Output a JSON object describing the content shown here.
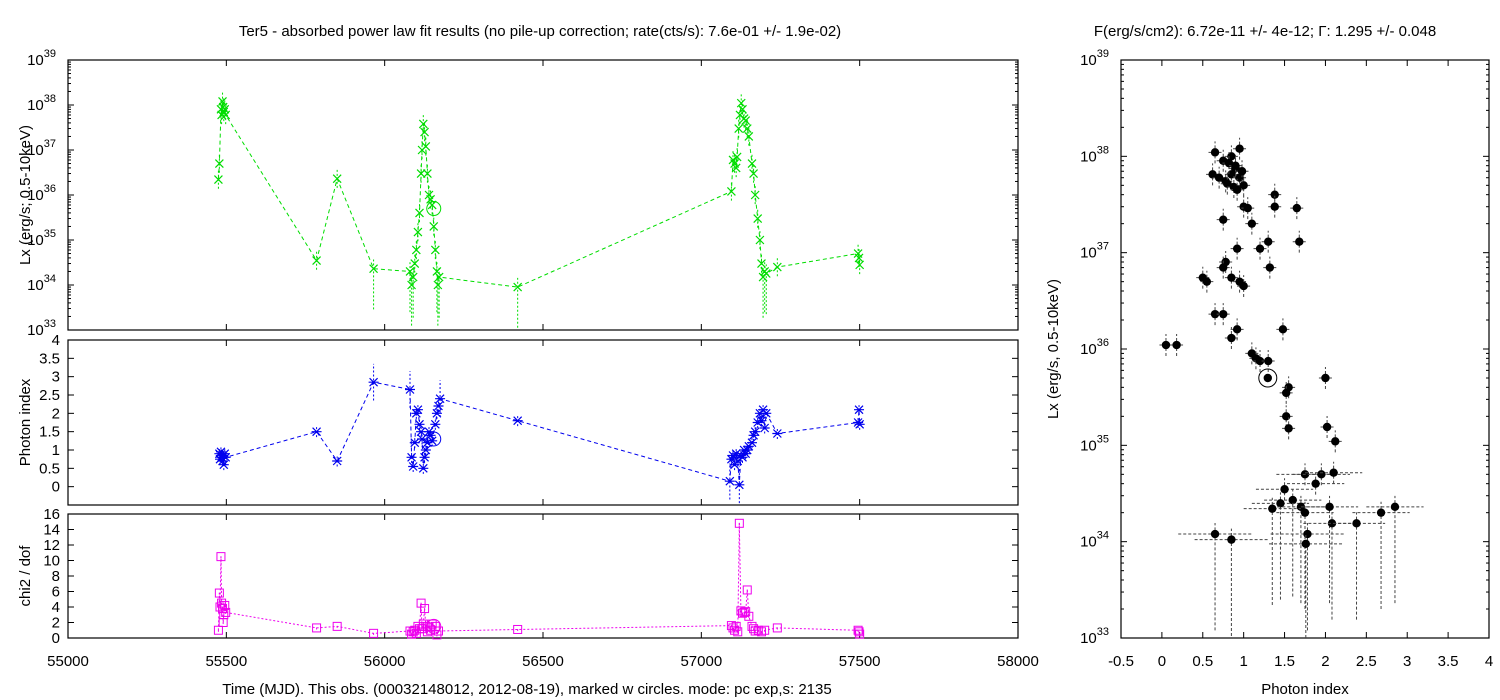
{
  "left_title": "Ter5  - absorbed power law fit results (no pile-up correction; rate(cts/s): 7.6e-01 +/- 1.9e-02)",
  "right_title": "F(erg/s/cm2): 6.72e-11 +/- 4e-12; Γ: 1.295 +/- 0.048",
  "left_xlabel": "Time (MJD). This obs. (00032148012, 2012-08-19), marked w circles. mode: pc exp,s: 2135",
  "colors": {
    "lx": "#00dd00",
    "photon": "#0000ee",
    "chi": "#ee00ee",
    "scatter": "#000000"
  },
  "chart_data": [
    {
      "type": "line",
      "panel": "lx_vs_time",
      "ylabel": "Lx (erg/s; 0.5-10keV)",
      "xlim": [
        55000,
        58000
      ],
      "ylim": [
        1e+33,
        1e+39
      ],
      "yscale": "log",
      "y_ticks": [
        {
          "v": 1e+33,
          "m": "10",
          "e": "33"
        },
        {
          "v": 1e+34,
          "m": "10",
          "e": "34"
        },
        {
          "v": 1e+35,
          "m": "10",
          "e": "35"
        },
        {
          "v": 1e+36,
          "m": "10",
          "e": "36"
        },
        {
          "v": 1e+37,
          "m": "10",
          "e": "37"
        },
        {
          "v": 1e+38,
          "m": "10",
          "e": "38"
        },
        {
          "v": 1e+39,
          "m": "10",
          "e": "39"
        }
      ],
      "marker": "x",
      "points": [
        [
          55475,
          2.2e+36
        ],
        [
          55478,
          5e+36
        ],
        [
          55483,
          8e+37
        ],
        [
          55485,
          6e+37
        ],
        [
          55488,
          1.2e+38
        ],
        [
          55490,
          9e+37
        ],
        [
          55492,
          7e+37
        ],
        [
          55495,
          8e+37
        ],
        [
          55498,
          6e+37
        ],
        [
          55785,
          3.5e+34
        ],
        [
          55850,
          2.3e+36
        ],
        [
          55965,
          2.3e+34
        ],
        [
          56080,
          2e+34
        ],
        [
          56085,
          1e+34
        ],
        [
          56090,
          1.5e+34
        ],
        [
          56095,
          3e+34
        ],
        [
          56100,
          6e+34
        ],
        [
          56105,
          1.5e+35
        ],
        [
          56110,
          4e+35
        ],
        [
          56115,
          3e+36
        ],
        [
          56118,
          1e+37
        ],
        [
          56122,
          3.8e+37
        ],
        [
          56126,
          2.5e+37
        ],
        [
          56130,
          1.2e+37
        ],
        [
          56135,
          3e+36
        ],
        [
          56140,
          1e+36
        ],
        [
          56145,
          8e+35
        ],
        [
          56150,
          6e+35
        ],
        [
          56155,
          2e+35
        ],
        [
          56160,
          6e+34
        ],
        [
          56165,
          2e+34
        ],
        [
          56168,
          1e+34
        ],
        [
          56172,
          1.5e+34
        ],
        [
          56420,
          9e+33
        ],
        [
          57095,
          1.2e+36
        ],
        [
          57100,
          6e+36
        ],
        [
          57105,
          5e+36
        ],
        [
          57110,
          4e+36
        ],
        [
          57113,
          7e+36
        ],
        [
          57118,
          3e+37
        ],
        [
          57122,
          6e+37
        ],
        [
          57126,
          1.1e+38
        ],
        [
          57130,
          8e+37
        ],
        [
          57135,
          5e+37
        ],
        [
          57140,
          4.5e+37
        ],
        [
          57145,
          3e+37
        ],
        [
          57150,
          2e+37
        ],
        [
          57160,
          5e+36
        ],
        [
          57165,
          3e+36
        ],
        [
          57170,
          1e+36
        ],
        [
          57178,
          3e+35
        ],
        [
          57185,
          1e+35
        ],
        [
          57190,
          3e+34
        ],
        [
          57195,
          1.5e+34
        ],
        [
          57200,
          2e+34
        ],
        [
          57205,
          1.8e+34
        ],
        [
          57240,
          2.5e+34
        ],
        [
          57495,
          5e+34
        ],
        [
          57498,
          4e+34
        ],
        [
          57500,
          2.8e+34
        ]
      ],
      "current_obs": [
        56155,
        5e+35
      ]
    },
    {
      "type": "line",
      "panel": "photon_index_vs_time",
      "ylabel": "Photon index",
      "xlim": [
        55000,
        58000
      ],
      "ylim": [
        -0.5,
        4
      ],
      "yticks": [
        "0",
        "0.5",
        "1",
        "1.5",
        "2",
        "2.5",
        "3",
        "3.5",
        "4"
      ],
      "marker": "star",
      "points": [
        [
          55478,
          0.9
        ],
        [
          55480,
          0.75
        ],
        [
          55483,
          0.95
        ],
        [
          55485,
          0.8
        ],
        [
          55488,
          0.7
        ],
        [
          55490,
          0.85
        ],
        [
          55492,
          0.6
        ],
        [
          55495,
          0.9
        ],
        [
          55498,
          0.8
        ],
        [
          55785,
          1.5
        ],
        [
          55850,
          0.7
        ],
        [
          55965,
          2.85
        ],
        [
          56080,
          2.65
        ],
        [
          56085,
          0.8
        ],
        [
          56090,
          0.55
        ],
        [
          56095,
          1.2
        ],
        [
          56100,
          2.0
        ],
        [
          56105,
          2.1
        ],
        [
          56110,
          1.7
        ],
        [
          56115,
          1.5
        ],
        [
          56118,
          1.3
        ],
        [
          56122,
          0.5
        ],
        [
          56126,
          0.8
        ],
        [
          56130,
          1.0
        ],
        [
          56135,
          1.2
        ],
        [
          56140,
          1.5
        ],
        [
          56145,
          1.4
        ],
        [
          56150,
          1.25
        ],
        [
          56160,
          1.7
        ],
        [
          56165,
          2.0
        ],
        [
          56170,
          2.2
        ],
        [
          56175,
          2.4
        ],
        [
          56420,
          1.8
        ],
        [
          57090,
          0.15
        ],
        [
          57095,
          0.75
        ],
        [
          57100,
          0.85
        ],
        [
          57105,
          0.6
        ],
        [
          57110,
          0.9
        ],
        [
          57115,
          0.7
        ],
        [
          57120,
          0.05
        ],
        [
          57125,
          0.85
        ],
        [
          57130,
          0.8
        ],
        [
          57135,
          1.0
        ],
        [
          57140,
          0.9
        ],
        [
          57145,
          1.0
        ],
        [
          57150,
          1.1
        ],
        [
          57160,
          1.2
        ],
        [
          57165,
          1.4
        ],
        [
          57170,
          1.5
        ],
        [
          57178,
          1.75
        ],
        [
          57185,
          2.0
        ],
        [
          57190,
          1.8
        ],
        [
          57195,
          2.1
        ],
        [
          57200,
          1.6
        ],
        [
          57205,
          2.0
        ],
        [
          57240,
          1.45
        ],
        [
          57495,
          1.75
        ],
        [
          57498,
          2.1
        ],
        [
          57500,
          1.7
        ]
      ],
      "current_obs": [
        56155,
        1.3
      ]
    },
    {
      "type": "line",
      "panel": "chi2_vs_time",
      "ylabel": "chi2 / dof",
      "xlabel": "Time (MJD). This obs. (00032148012, 2012-08-19), marked w circles. mode: pc exp,s: 2135",
      "xlim": [
        55000,
        58000
      ],
      "xticks": [
        "55000",
        "55500",
        "56000",
        "56500",
        "57000",
        "57500",
        "58000"
      ],
      "ylim": [
        0,
        16
      ],
      "yticks": [
        "0",
        "2",
        "4",
        "6",
        "8",
        "10",
        "12",
        "14",
        "16"
      ],
      "marker": "square",
      "points": [
        [
          55475,
          1.0
        ],
        [
          55478,
          5.8
        ],
        [
          55480,
          4.0
        ],
        [
          55483,
          10.5
        ],
        [
          55485,
          4.5
        ],
        [
          55488,
          3.8
        ],
        [
          55490,
          2.0
        ],
        [
          55492,
          3.0
        ],
        [
          55495,
          4.2
        ],
        [
          55498,
          3.3
        ],
        [
          55785,
          1.3
        ],
        [
          55850,
          1.5
        ],
        [
          55965,
          0.6
        ],
        [
          56080,
          0.9
        ],
        [
          56085,
          0.5
        ],
        [
          56090,
          0.8
        ],
        [
          56095,
          1.0
        ],
        [
          56100,
          0.6
        ],
        [
          56105,
          1.5
        ],
        [
          56110,
          1.2
        ],
        [
          56115,
          4.5
        ],
        [
          56118,
          1.2
        ],
        [
          56122,
          1.8
        ],
        [
          56126,
          3.8
        ],
        [
          56130,
          1.5
        ],
        [
          56135,
          0.8
        ],
        [
          56140,
          1.4
        ],
        [
          56145,
          1.0
        ],
        [
          56150,
          1.8
        ],
        [
          56160,
          1.5
        ],
        [
          56165,
          0.4
        ],
        [
          56170,
          0.9
        ],
        [
          56420,
          1.1
        ],
        [
          57095,
          1.6
        ],
        [
          57100,
          1.3
        ],
        [
          57105,
          1.0
        ],
        [
          57110,
          1.5
        ],
        [
          57115,
          0.8
        ],
        [
          57120,
          14.8
        ],
        [
          57125,
          3.5
        ],
        [
          57130,
          3.2
        ],
        [
          57135,
          3.3
        ],
        [
          57140,
          3.4
        ],
        [
          57145,
          6.2
        ],
        [
          57150,
          2.8
        ],
        [
          57160,
          1.5
        ],
        [
          57165,
          1.2
        ],
        [
          57170,
          0.9
        ],
        [
          57180,
          1.0
        ],
        [
          57190,
          0.8
        ],
        [
          57200,
          1.0
        ],
        [
          57240,
          1.3
        ],
        [
          57495,
          1.0
        ],
        [
          57498,
          0.8
        ],
        [
          57500,
          0.5
        ]
      ],
      "current_obs": [
        56155,
        1.5
      ]
    },
    {
      "type": "scatter",
      "panel": "lx_vs_photon_index",
      "title": "F(erg/s/cm2): 6.72e-11 +/- 4e-12; Γ: 1.295 +/- 0.048",
      "xlabel": "Photon index",
      "ylabel": "Lx (erg/s, 0.5-10keV)",
      "xlim": [
        -0.5,
        4
      ],
      "xticks": [
        "-0.5",
        "0",
        "0.5",
        "1",
        "1.5",
        "2",
        "2.5",
        "3",
        "3.5",
        "4"
      ],
      "ylim": [
        1e+33,
        1e+39
      ],
      "yscale": "log",
      "y_ticks": [
        {
          "v": 1e+33,
          "m": "10",
          "e": "33"
        },
        {
          "v": 1e+34,
          "m": "10",
          "e": "34"
        },
        {
          "v": 1e+35,
          "m": "10",
          "e": "35"
        },
        {
          "v": 1e+36,
          "m": "10",
          "e": "36"
        },
        {
          "v": 1e+37,
          "m": "10",
          "e": "37"
        },
        {
          "v": 1e+38,
          "m": "10",
          "e": "38"
        },
        {
          "v": 1e+39,
          "m": "10",
          "e": "39"
        }
      ],
      "points": [
        [
          0.65,
          1.1e+38
        ],
        [
          0.75,
          9e+37
        ],
        [
          0.85,
          1e+38
        ],
        [
          0.95,
          1.2e+38
        ],
        [
          0.62,
          6.5e+37
        ],
        [
          0.7,
          6e+37
        ],
        [
          0.78,
          5.5e+37
        ],
        [
          0.85,
          6.5e+37
        ],
        [
          0.9,
          7.5e+37
        ],
        [
          0.95,
          6e+37
        ],
        [
          0.8,
          5.2e+37
        ],
        [
          0.88,
          4.8e+37
        ],
        [
          1.0,
          5e+37
        ],
        [
          0.92,
          4.5e+37
        ],
        [
          0.82,
          8.5e+37
        ],
        [
          0.9,
          8e+37
        ],
        [
          0.98,
          7e+37
        ],
        [
          1.38,
          4e+37
        ],
        [
          1.0,
          3e+37
        ],
        [
          1.38,
          3e+37
        ],
        [
          1.05,
          2.9e+37
        ],
        [
          1.65,
          2.9e+37
        ],
        [
          0.75,
          2.2e+37
        ],
        [
          1.1,
          2e+37
        ],
        [
          1.3,
          1.3e+37
        ],
        [
          1.68,
          1.3e+37
        ],
        [
          0.92,
          1.1e+37
        ],
        [
          1.2,
          1.1e+37
        ],
        [
          0.78,
          8e+36
        ],
        [
          0.75,
          7e+36
        ],
        [
          1.32,
          7e+36
        ],
        [
          0.85,
          5.5e+36
        ],
        [
          0.95,
          5e+36
        ],
        [
          1.0,
          4.5e+36
        ],
        [
          0.5,
          5.5e+36
        ],
        [
          0.55,
          5e+36
        ],
        [
          0.65,
          2.3e+36
        ],
        [
          0.75,
          2.3e+36
        ],
        [
          0.92,
          1.6e+36
        ],
        [
          1.48,
          1.6e+36
        ],
        [
          0.85,
          1.3e+36
        ],
        [
          0.05,
          1.1e+36
        ],
        [
          0.18,
          1.1e+36
        ],
        [
          1.1,
          9e+35
        ],
        [
          1.15,
          8e+35
        ],
        [
          1.2,
          7.5e+35
        ],
        [
          1.3,
          7.5e+35
        ],
        [
          1.55,
          4e+35
        ],
        [
          1.52,
          3.5e+35
        ],
        [
          2.0,
          5e+35
        ],
        [
          1.52,
          2e+35
        ],
        [
          1.55,
          1.5e+35
        ],
        [
          2.02,
          1.55e+35
        ],
        [
          2.12,
          1.1e+35
        ],
        [
          1.75,
          5e+34
        ],
        [
          1.95,
          5e+34
        ],
        [
          2.1,
          5.2e+34
        ],
        [
          1.88,
          4e+34
        ],
        [
          1.5,
          3.5e+34
        ],
        [
          1.6,
          2.7e+34
        ],
        [
          1.45,
          2.5e+34
        ],
        [
          1.7,
          2.3e+34
        ],
        [
          2.05,
          2.3e+34
        ],
        [
          2.85,
          2.3e+34
        ],
        [
          1.35,
          2.2e+34
        ],
        [
          1.75,
          2e+34
        ],
        [
          2.68,
          2e+34
        ],
        [
          2.08,
          1.55e+34
        ],
        [
          2.38,
          1.55e+34
        ],
        [
          0.65,
          1.2e+34
        ],
        [
          1.78,
          1.2e+34
        ],
        [
          0.85,
          1.05e+34
        ],
        [
          1.76,
          9.5e+33
        ]
      ],
      "current_obs": [
        1.295,
        5e+35
      ]
    }
  ]
}
